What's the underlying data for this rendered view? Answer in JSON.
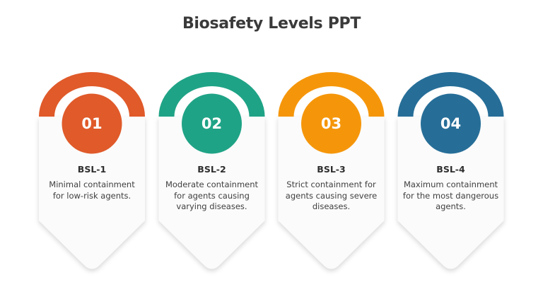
{
  "slide": {
    "title": "Biosafety Levels PPT"
  },
  "levels": [
    {
      "number": "01",
      "heading": "BSL-1",
      "description": "Minimal containment for low-risk agents.",
      "color": "#E05A2A"
    },
    {
      "number": "02",
      "heading": "BSL-2",
      "description": "Moderate containment for agents causing varying diseases.",
      "color": "#1FA386"
    },
    {
      "number": "03",
      "heading": "BSL-3",
      "description": "Strict containment for agents causing severe diseases.",
      "color": "#F5960A"
    },
    {
      "number": "04",
      "heading": "BSL-4",
      "description": "Maximum containment for the most dangerous agents.",
      "color": "#266E98"
    }
  ]
}
